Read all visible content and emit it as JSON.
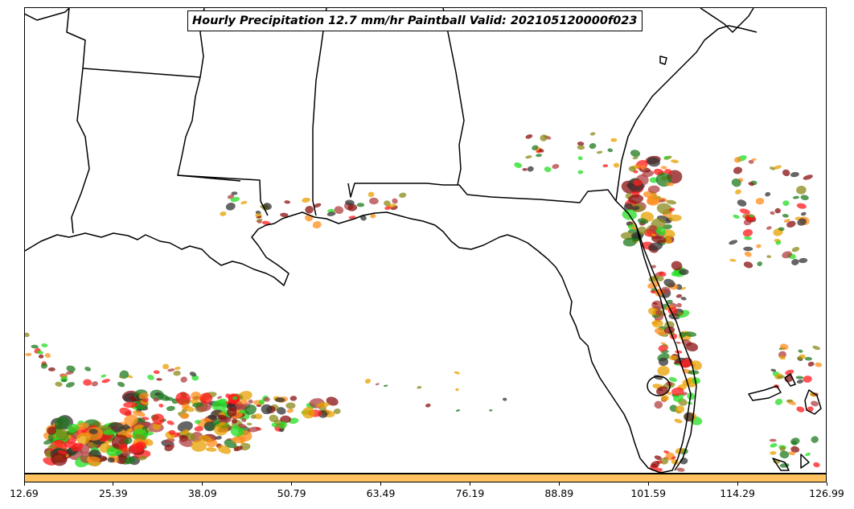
{
  "title": "Hourly Precipitation 12.7 mm/hr Paintball Valid: 202105120000f023",
  "colorbar": {
    "color": "#ffc25f",
    "ticks": [
      "12.69",
      "25.39",
      "38.09",
      "50.79",
      "63.49",
      "76.19",
      "88.89",
      "101.59",
      "114.29",
      "126.99"
    ]
  },
  "member_colors": [
    "#ff8c1a",
    "#e8a000",
    "#ff1a1a",
    "#8a1010",
    "#22dd22",
    "#1f7a1f",
    "#8a8a1a",
    "#333333",
    "#b04040"
  ],
  "map": {
    "region": "Southeastern United States — Gulf Coast and Florida",
    "grid": false
  }
}
